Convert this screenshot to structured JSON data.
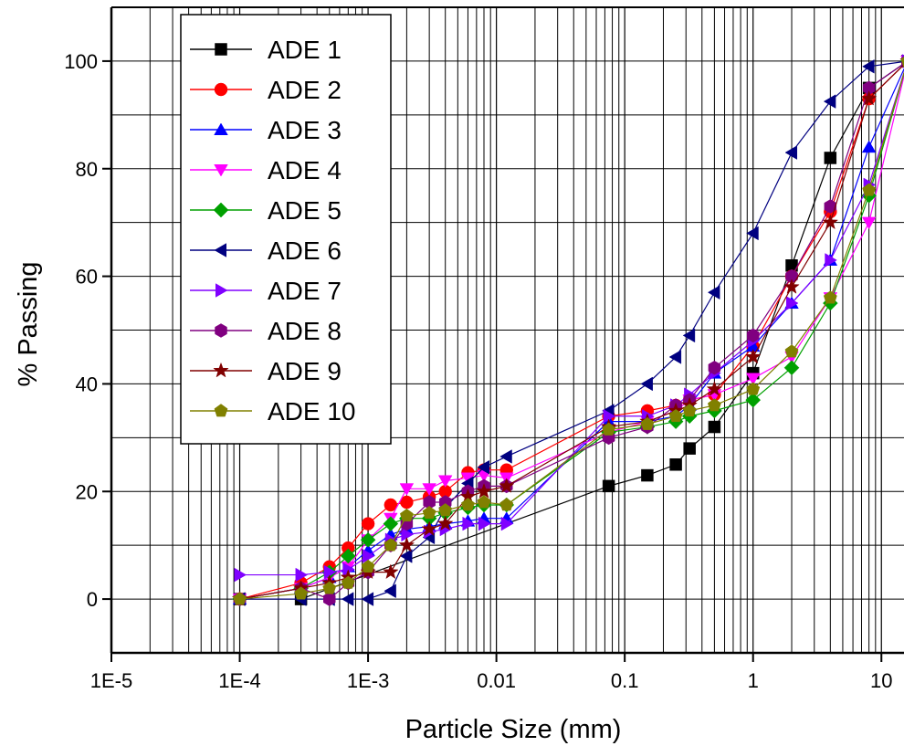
{
  "chart_data": {
    "type": "line",
    "xlabel": "Particle Size (mm)",
    "ylabel": "% Passing",
    "x_scale": "log",
    "xlim": [
      1e-05,
      15
    ],
    "ylim": [
      -10,
      110
    ],
    "x_ticks": [
      {
        "value": 1e-05,
        "label": "1E-5"
      },
      {
        "value": 0.0001,
        "label": "1E-4"
      },
      {
        "value": 0.001,
        "label": "1E-3"
      },
      {
        "value": 0.01,
        "label": "0.01"
      },
      {
        "value": 0.1,
        "label": "0.1"
      },
      {
        "value": 1,
        "label": "1"
      },
      {
        "value": 10,
        "label": "10"
      }
    ],
    "y_ticks": [
      {
        "value": 0,
        "label": "0"
      },
      {
        "value": 20,
        "label": "20"
      },
      {
        "value": 40,
        "label": "40"
      },
      {
        "value": 60,
        "label": "60"
      },
      {
        "value": 80,
        "label": "80"
      },
      {
        "value": 100,
        "label": "100"
      }
    ],
    "grid": true,
    "legend_position": "top-left",
    "series": [
      {
        "name": "ADE 1",
        "color": "#000000",
        "marker": "square",
        "x": [
          0.0001,
          0.0003,
          0.075,
          0.15,
          0.25,
          0.32,
          0.5,
          1,
          2,
          4,
          8,
          16
        ],
        "y": [
          0,
          0,
          21,
          23,
          25,
          28,
          32,
          42,
          62,
          82,
          95,
          100
        ]
      },
      {
        "name": "ADE 2",
        "color": "#ff0000",
        "marker": "circle",
        "x": [
          0.0001,
          0.0003,
          0.0005,
          0.0007,
          0.001,
          0.0015,
          0.002,
          0.003,
          0.004,
          0.006,
          0.008,
          0.012,
          0.075,
          0.15,
          0.25,
          0.32,
          0.5,
          1,
          2,
          4,
          8,
          16
        ],
        "y": [
          0,
          3,
          6,
          9.5,
          14,
          17.5,
          18,
          19,
          20,
          23.5,
          24,
          24,
          34,
          35,
          36,
          37,
          38,
          47,
          60,
          72,
          93,
          100
        ]
      },
      {
        "name": "ADE 3",
        "color": "#0000ff",
        "marker": "triangle-up",
        "x": [
          0.0001,
          0.0003,
          0.0005,
          0.0007,
          0.001,
          0.0015,
          0.002,
          0.003,
          0.004,
          0.006,
          0.008,
          0.012,
          0.075,
          0.15,
          0.25,
          0.32,
          0.5,
          1,
          2,
          4,
          8,
          16
        ],
        "y": [
          0,
          2,
          4,
          6,
          9,
          12,
          13,
          13.5,
          14,
          14.5,
          15,
          15,
          33,
          33,
          34,
          36,
          42,
          47,
          55,
          63,
          84,
          100
        ]
      },
      {
        "name": "ADE 4",
        "color": "#ff00ff",
        "marker": "triangle-down",
        "x": [
          0.0001,
          0.0003,
          0.0005,
          0.0007,
          0.001,
          0.0015,
          0.002,
          0.003,
          0.004,
          0.006,
          0.008,
          0.012,
          0.075,
          0.15,
          0.25,
          0.32,
          0.5,
          1,
          2,
          4,
          8,
          16
        ],
        "y": [
          0,
          2,
          4,
          6,
          11,
          15,
          20.5,
          20.5,
          22,
          22.5,
          23,
          22.5,
          31,
          33,
          35,
          37,
          38,
          41,
          45,
          56,
          70,
          100
        ]
      },
      {
        "name": "ADE 5",
        "color": "#00a000",
        "marker": "diamond",
        "x": [
          0.0001,
          0.0003,
          0.0005,
          0.0007,
          0.001,
          0.0015,
          0.002,
          0.003,
          0.004,
          0.006,
          0.008,
          0.012,
          0.075,
          0.15,
          0.25,
          0.32,
          0.5,
          1,
          2,
          4,
          8,
          16
        ],
        "y": [
          0,
          2,
          5,
          8,
          11,
          14,
          15,
          15,
          16,
          17,
          17.5,
          17.5,
          31,
          32,
          33,
          34,
          35,
          37,
          43,
          55,
          75,
          100
        ]
      },
      {
        "name": "ADE 6",
        "color": "#000080",
        "marker": "triangle-left",
        "x": [
          0.0001,
          0.0003,
          0.0005,
          0.0007,
          0.001,
          0.0015,
          0.002,
          0.003,
          0.004,
          0.006,
          0.008,
          0.012,
          0.075,
          0.15,
          0.25,
          0.32,
          0.5,
          1,
          2,
          4,
          8,
          16
        ],
        "y": [
          0,
          0,
          0,
          0,
          0,
          1.5,
          8,
          11.5,
          17,
          21.5,
          24.5,
          26.5,
          35,
          40,
          45,
          49,
          57,
          68,
          83,
          92.5,
          99,
          100
        ]
      },
      {
        "name": "ADE 7",
        "color": "#8000ff",
        "marker": "triangle-right",
        "x": [
          0.0001,
          0.0003,
          0.0005,
          0.0007,
          0.001,
          0.0015,
          0.002,
          0.003,
          0.004,
          0.006,
          0.008,
          0.012,
          0.075,
          0.15,
          0.25,
          0.32,
          0.5,
          1,
          2,
          4,
          8,
          16
        ],
        "y": [
          4.5,
          4.5,
          5,
          5.5,
          8,
          11,
          12,
          12.5,
          13,
          14,
          14,
          14,
          34,
          34,
          36,
          38,
          42,
          48,
          55,
          63,
          77,
          100
        ]
      },
      {
        "name": "ADE 8",
        "color": "#800080",
        "marker": "hexagon",
        "x": [
          0.0001,
          0.0003,
          0.0005,
          0.0007,
          0.001,
          0.0015,
          0.002,
          0.003,
          0.004,
          0.006,
          0.008,
          0.012,
          0.075,
          0.15,
          0.25,
          0.32,
          0.5,
          1,
          2,
          4,
          8,
          16
        ],
        "y": [
          0,
          2,
          0,
          3,
          5,
          10,
          14,
          18,
          18,
          20,
          21,
          21,
          30,
          32,
          36,
          37,
          43,
          49,
          60,
          73,
          95,
          100
        ]
      },
      {
        "name": "ADE 9",
        "color": "#800000",
        "marker": "star",
        "x": [
          0.0001,
          0.0003,
          0.0005,
          0.0007,
          0.001,
          0.0015,
          0.002,
          0.003,
          0.004,
          0.006,
          0.008,
          0.012,
          0.075,
          0.15,
          0.25,
          0.32,
          0.5,
          1,
          2,
          4,
          8,
          16
        ],
        "y": [
          0,
          2,
          3,
          4,
          5,
          5,
          10,
          13,
          14,
          19,
          20,
          21,
          32,
          33,
          35,
          36,
          39,
          45,
          58,
          70,
          93,
          100
        ]
      },
      {
        "name": "ADE 10",
        "color": "#808000",
        "marker": "pentagon",
        "x": [
          0.0001,
          0.0003,
          0.0005,
          0.0007,
          0.001,
          0.0015,
          0.002,
          0.003,
          0.004,
          0.006,
          0.008,
          0.012,
          0.075,
          0.15,
          0.25,
          0.32,
          0.5,
          1,
          2,
          4,
          8,
          16
        ],
        "y": [
          0,
          1,
          2,
          3,
          6,
          10,
          15.5,
          16,
          16.5,
          17.5,
          18,
          17.5,
          31.5,
          32.5,
          34,
          35,
          36,
          39,
          46,
          56,
          76,
          100
        ]
      }
    ]
  }
}
